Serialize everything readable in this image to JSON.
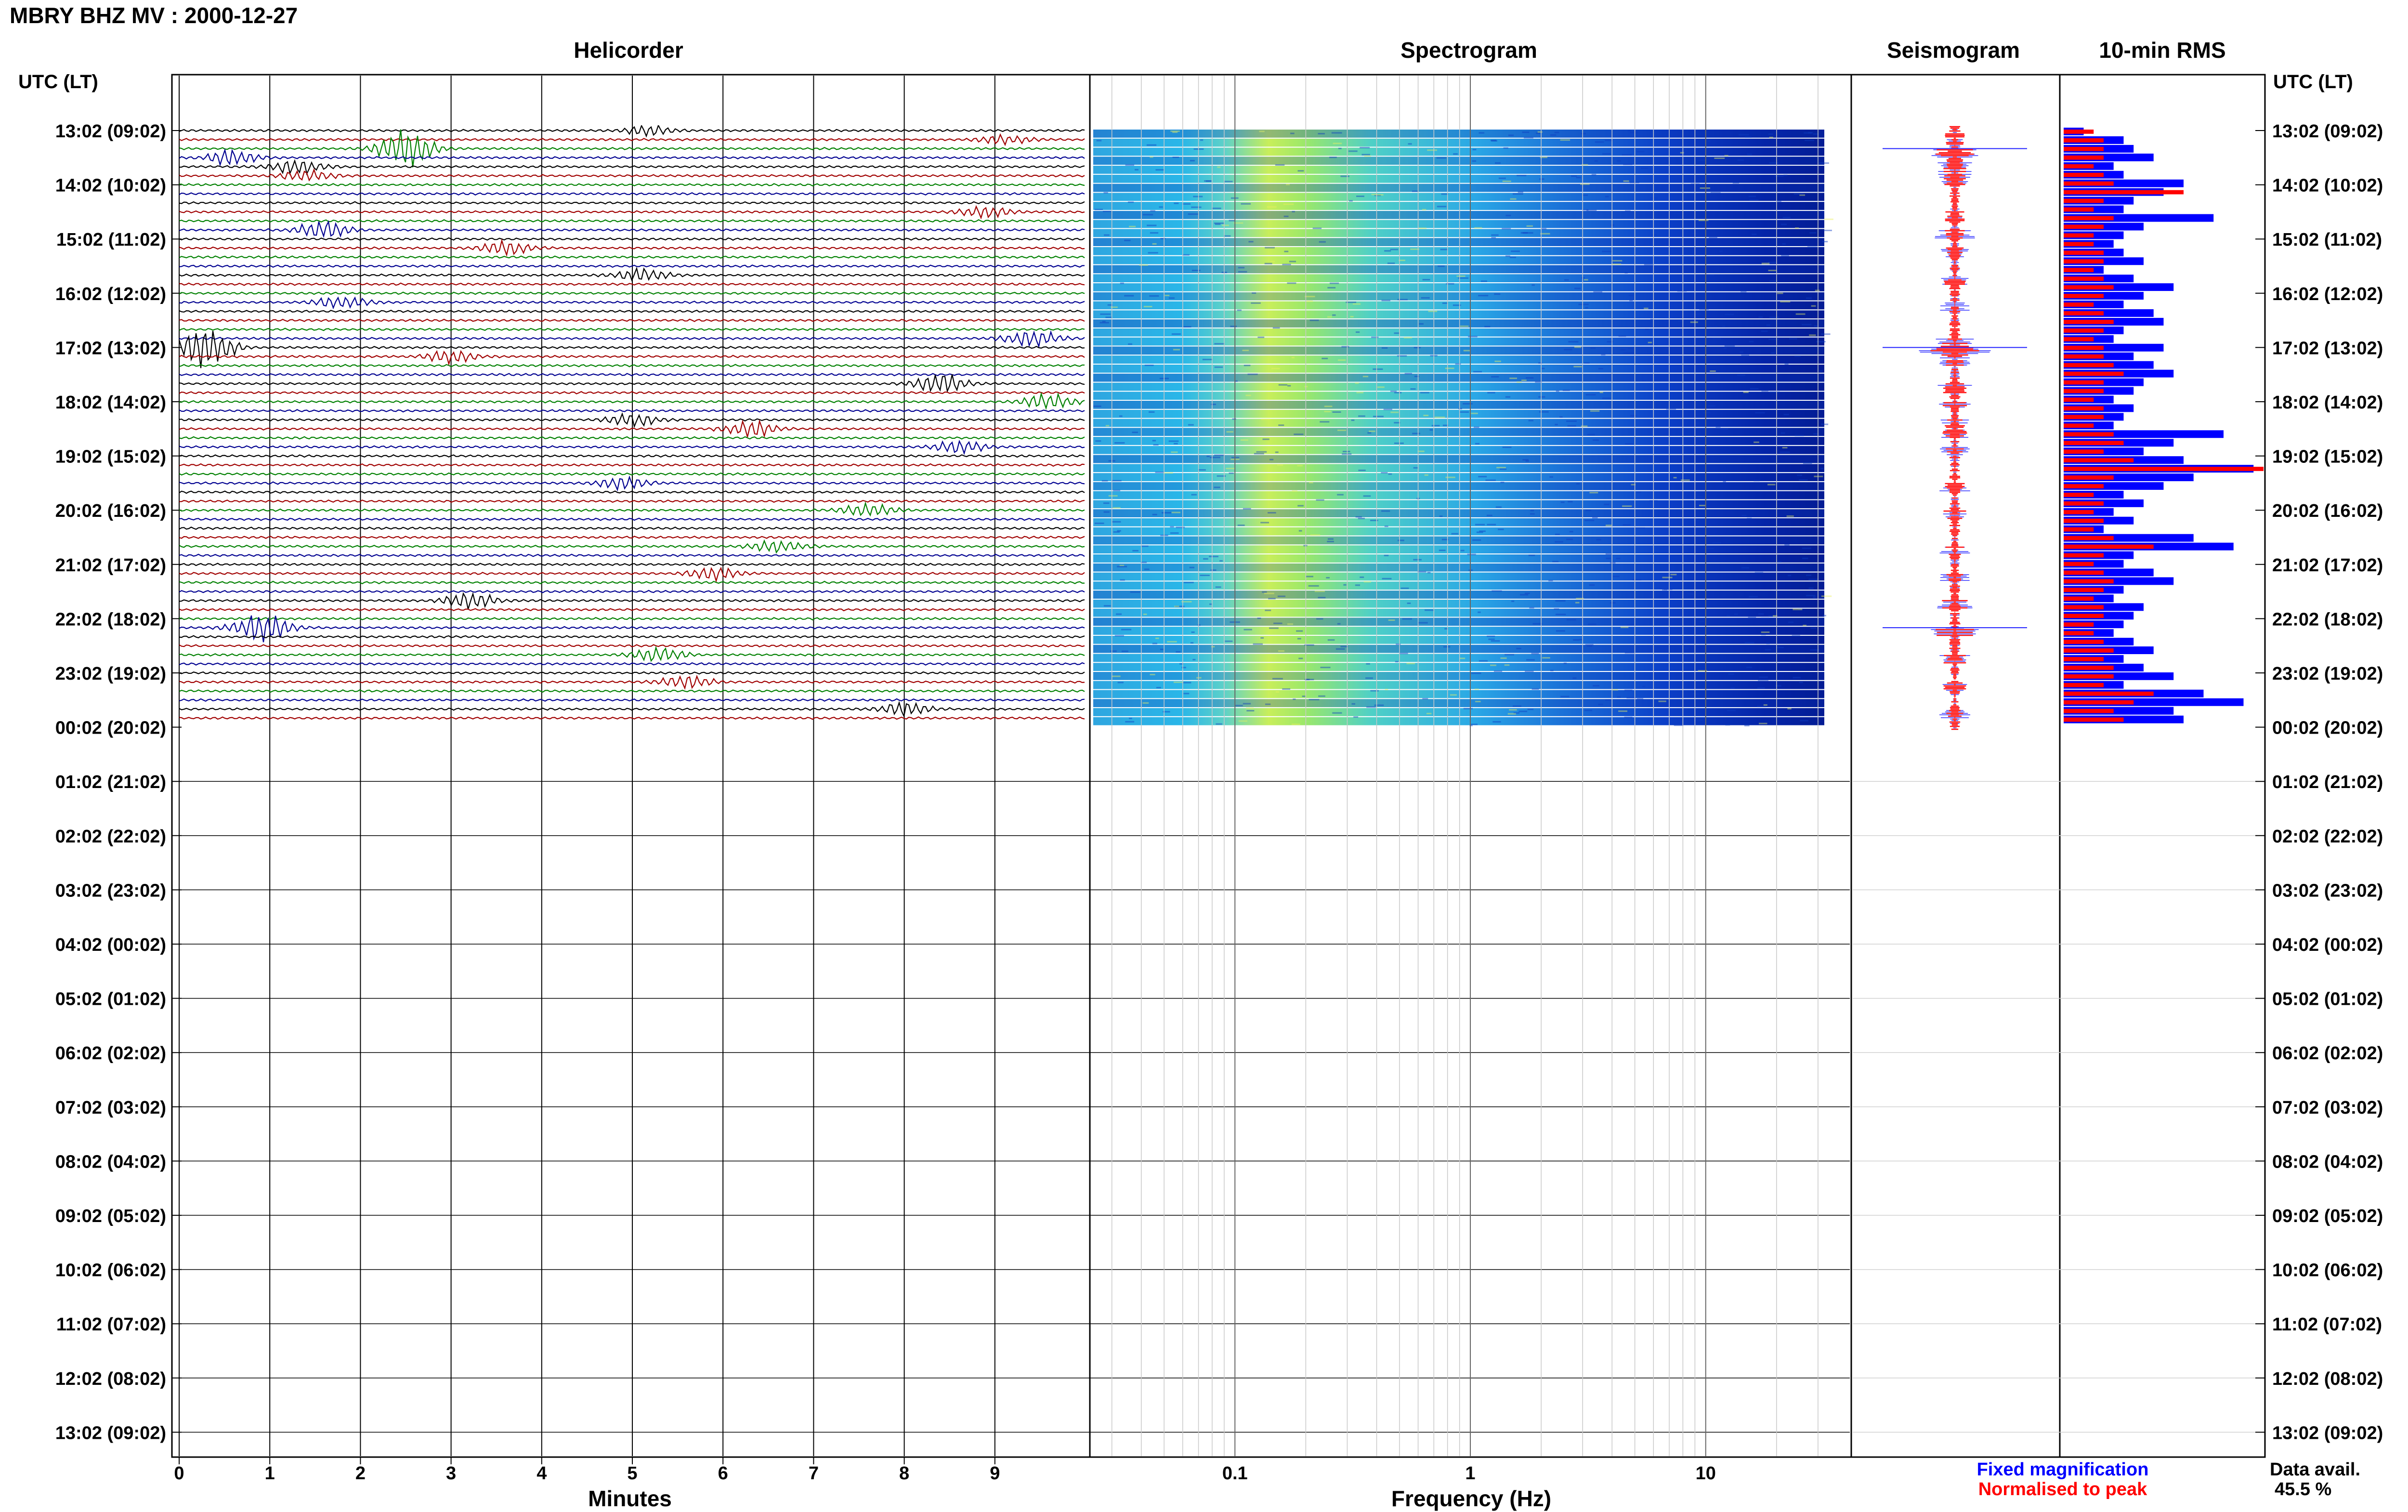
{
  "header": {
    "title": "MBRY BHZ MV : 2000-12-27"
  },
  "panels": {
    "helicorder": "Helicorder",
    "spectrogram": "Spectrogram",
    "seismogram": "Seismogram",
    "rms": "10-min RMS"
  },
  "axes": {
    "left_header": "UTC (LT)",
    "right_header": "UTC (LT)",
    "minutes_label": "Minutes",
    "frequency_label": "Frequency (Hz)"
  },
  "legend": {
    "fixed": "Fixed magnification",
    "normalised": "Normalised to peak",
    "fixed_color": "#0000ff",
    "normalised_color": "#ff0000"
  },
  "availability": {
    "label": "Data avail.",
    "value": "45.5 %"
  },
  "colors": {
    "trace_cycle": [
      "#000000",
      "#a00000",
      "#008000",
      "#000090"
    ],
    "rms_fixed": "#0000ff",
    "rms_norm": "#ff0000"
  },
  "chart_data": {
    "type": "helicorder",
    "hour_labels": [
      "13:02 (09:02)",
      "14:02 (10:02)",
      "15:02 (11:02)",
      "16:02 (12:02)",
      "17:02 (13:02)",
      "18:02 (14:02)",
      "19:02 (15:02)",
      "20:02 (16:02)",
      "21:02 (17:02)",
      "22:02 (18:02)",
      "23:02 (19:02)",
      "00:02 (20:02)",
      "01:02 (21:02)",
      "02:02 (22:02)",
      "03:02 (23:02)",
      "04:02 (00:02)",
      "05:02 (01:02)",
      "06:02 (02:02)",
      "07:02 (03:02)",
      "08:02 (04:02)",
      "09:02 (05:02)",
      "10:02 (06:02)",
      "11:02 (07:02)",
      "12:02 (08:02)",
      "13:02 (09:02)"
    ],
    "minute_ticks": [
      "0",
      "1",
      "2",
      "3",
      "4",
      "5",
      "6",
      "7",
      "8",
      "9"
    ],
    "freq_ticks": [
      "0.1",
      "1",
      "10"
    ],
    "freq_range_hz": [
      0.025,
      40
    ],
    "traces_with_data": 66,
    "trace_minutes": 10,
    "events": [
      {
        "trace": 0,
        "minute": 5.2,
        "amp": 0.8
      },
      {
        "trace": 1,
        "minute": 9.1,
        "amp": 0.7
      },
      {
        "trace": 2,
        "minute": 2.5,
        "amp": 3.2
      },
      {
        "trace": 3,
        "minute": 0.6,
        "amp": 1.2
      },
      {
        "trace": 4,
        "minute": 1.3,
        "amp": 1.3
      },
      {
        "trace": 5,
        "minute": 1.4,
        "amp": 1.0
      },
      {
        "trace": 9,
        "minute": 8.9,
        "amp": 0.9
      },
      {
        "trace": 11,
        "minute": 1.6,
        "amp": 1.5
      },
      {
        "trace": 13,
        "minute": 3.6,
        "amp": 1.1
      },
      {
        "trace": 16,
        "minute": 5.1,
        "amp": 1.0
      },
      {
        "trace": 19,
        "minute": 1.8,
        "amp": 1.0
      },
      {
        "trace": 23,
        "minute": 9.4,
        "amp": 1.5
      },
      {
        "trace": 24,
        "minute": 0.3,
        "amp": 3.5
      },
      {
        "trace": 25,
        "minute": 3.0,
        "amp": 1.0
      },
      {
        "trace": 28,
        "minute": 8.4,
        "amp": 1.6
      },
      {
        "trace": 30,
        "minute": 9.6,
        "amp": 1.2
      },
      {
        "trace": 32,
        "minute": 5.0,
        "amp": 1.0
      },
      {
        "trace": 33,
        "minute": 6.3,
        "amp": 1.3
      },
      {
        "trace": 35,
        "minute": 8.6,
        "amp": 1.0
      },
      {
        "trace": 39,
        "minute": 4.9,
        "amp": 1.0
      },
      {
        "trace": 42,
        "minute": 7.6,
        "amp": 1.0
      },
      {
        "trace": 46,
        "minute": 6.6,
        "amp": 1.0
      },
      {
        "trace": 49,
        "minute": 5.9,
        "amp": 1.0
      },
      {
        "trace": 52,
        "minute": 3.2,
        "amp": 1.3
      },
      {
        "trace": 55,
        "minute": 0.9,
        "amp": 2.5
      },
      {
        "trace": 58,
        "minute": 5.3,
        "amp": 1.1
      },
      {
        "trace": 61,
        "minute": 5.6,
        "amp": 1.0
      },
      {
        "trace": 64,
        "minute": 8.0,
        "amp": 1.1
      }
    ],
    "rms_fixed": [
      0.1,
      0.3,
      0.35,
      0.45,
      0.25,
      0.3,
      0.6,
      0.5,
      0.35,
      0.3,
      0.75,
      0.4,
      0.3,
      0.25,
      0.3,
      0.4,
      0.2,
      0.35,
      0.55,
      0.4,
      0.3,
      0.45,
      0.5,
      0.3,
      0.25,
      0.5,
      0.35,
      0.45,
      0.55,
      0.4,
      0.35,
      0.25,
      0.35,
      0.3,
      0.25,
      0.8,
      0.55,
      0.4,
      0.6,
      0.95,
      0.65,
      0.5,
      0.3,
      0.4,
      0.25,
      0.35,
      0.2,
      0.65,
      0.85,
      0.35,
      0.3,
      0.45,
      0.55,
      0.3,
      0.25,
      0.4,
      0.35,
      0.3,
      0.25,
      0.35,
      0.45,
      0.3,
      0.4,
      0.55,
      0.3,
      0.7,
      0.9,
      0.55,
      0.6
    ],
    "rms_norm": [
      0.15,
      0.2,
      0.2,
      0.2,
      0.15,
      0.2,
      0.25,
      0.6,
      0.2,
      0.15,
      0.25,
      0.2,
      0.15,
      0.15,
      0.2,
      0.2,
      0.15,
      0.2,
      0.25,
      0.2,
      0.15,
      0.2,
      0.25,
      0.2,
      0.15,
      0.2,
      0.2,
      0.25,
      0.3,
      0.2,
      0.2,
      0.15,
      0.2,
      0.2,
      0.15,
      0.25,
      0.3,
      0.2,
      0.35,
      1.0,
      0.25,
      0.2,
      0.15,
      0.2,
      0.15,
      0.2,
      0.15,
      0.25,
      0.45,
      0.2,
      0.15,
      0.2,
      0.25,
      0.2,
      0.15,
      0.2,
      0.2,
      0.15,
      0.15,
      0.2,
      0.25,
      0.2,
      0.25,
      0.25,
      0.2,
      0.45,
      0.35,
      0.25,
      0.3
    ]
  }
}
